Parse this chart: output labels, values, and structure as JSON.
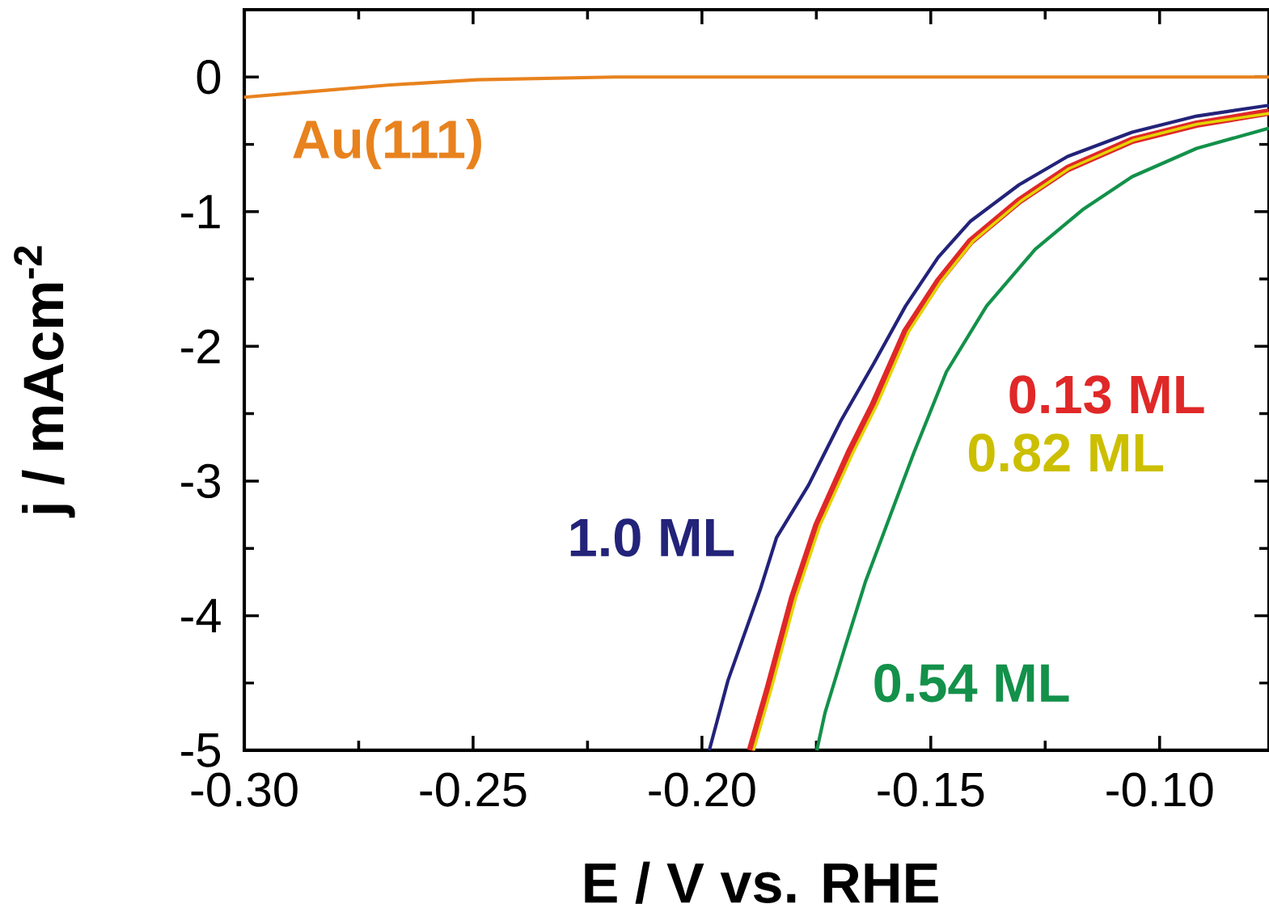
{
  "chart_data": {
    "type": "line",
    "xlabel": "E / V vs. RHE",
    "ylabel": "j / mAcm$^{-2}$",
    "xlim": [
      -0.3,
      -0.0761
    ],
    "ylim": [
      -5,
      0.5
    ],
    "xticks": [
      {
        "value": -0.3,
        "label": "-0.30"
      },
      -0.25,
      {
        "value": -0.2,
        "label": "-0.20"
      },
      -0.15,
      {
        "value": -0.1,
        "label": "-0.10"
      }
    ],
    "yticks": [
      0,
      -1,
      -2,
      -3,
      -4,
      -5
    ],
    "series": [
      {
        "name": "Au(111)",
        "color": "#e8821e",
        "x": [
          -0.3,
          -0.2862,
          -0.2686,
          -0.2491,
          -0.2191,
          -0.0761
        ],
        "values": [
          -0.15,
          -0.11,
          -0.06,
          -0.02,
          0,
          0
        ]
      },
      {
        "name": "1.0 ML",
        "color": "#23237a",
        "x": [
          -0.1984,
          -0.1943,
          -0.1873,
          -0.1837,
          -0.1767,
          -0.1696,
          -0.1625,
          -0.1555,
          -0.1484,
          -0.1413,
          -0.1307,
          -0.1201,
          -0.106,
          -0.0919,
          -0.0761
        ],
        "values": [
          -5.0,
          -4.48,
          -3.81,
          -3.42,
          -3.03,
          -2.55,
          -2.13,
          -1.7,
          -1.34,
          -1.07,
          -0.8,
          -0.59,
          -0.41,
          -0.29,
          -0.21
        ]
      },
      {
        "name": "0.13 ML",
        "color": "#e02828",
        "x": [
          -0.1894,
          -0.1855,
          -0.1802,
          -0.1749,
          -0.1678,
          -0.1625,
          -0.1555,
          -0.1484,
          -0.1413,
          -0.1307,
          -0.1201,
          -0.106,
          -0.0919,
          -0.0761
        ],
        "values": [
          -5.0,
          -4.54,
          -3.87,
          -3.33,
          -2.79,
          -2.43,
          -1.89,
          -1.52,
          -1.22,
          -0.92,
          -0.68,
          -0.47,
          -0.35,
          -0.26
        ]
      },
      {
        "name": "0.82 ML",
        "color": "#e3d400",
        "x": [
          -0.1887,
          -0.1848,
          -0.1795,
          -0.1742,
          -0.167,
          -0.1617,
          -0.1548,
          -0.1478,
          -0.1408,
          -0.1303,
          -0.1198,
          -0.1058,
          -0.0918,
          -0.0761
        ],
        "values": [
          -5.0,
          -4.54,
          -3.87,
          -3.33,
          -2.79,
          -2.43,
          -1.89,
          -1.52,
          -1.22,
          -0.92,
          -0.68,
          -0.47,
          -0.35,
          -0.27
        ]
      },
      {
        "name": "0.54 ML",
        "color": "#13914a",
        "x": [
          -0.1749,
          -0.1731,
          -0.1687,
          -0.1643,
          -0.159,
          -0.1537,
          -0.1466,
          -0.1378,
          -0.1272,
          -0.1166,
          -0.106,
          -0.0919,
          -0.0761
        ],
        "values": [
          -5.0,
          -4.72,
          -4.23,
          -3.75,
          -3.27,
          -2.79,
          -2.19,
          -1.7,
          -1.28,
          -0.98,
          -0.74,
          -0.53,
          -0.38
        ]
      }
    ]
  }
}
